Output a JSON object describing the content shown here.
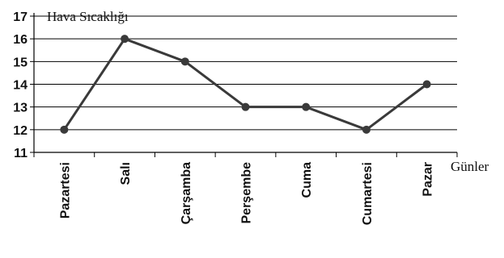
{
  "chart_data": {
    "type": "line",
    "ylabel": "Hava  Sıcaklığı",
    "xlabel": "Günler",
    "categories": [
      "Pazartesi",
      "Salı",
      "Çarşamba",
      "Perşembe",
      "Cuma",
      "Cumartesi",
      "Pazar"
    ],
    "series": [
      {
        "values": [
          12,
          16,
          15,
          13,
          13,
          12,
          14
        ]
      }
    ],
    "ylim": [
      11,
      17
    ],
    "yticks": [
      "11",
      "12",
      "13",
      "14",
      "15",
      "16",
      "17"
    ],
    "grid": true,
    "line_color": "#3a3a3a"
  }
}
